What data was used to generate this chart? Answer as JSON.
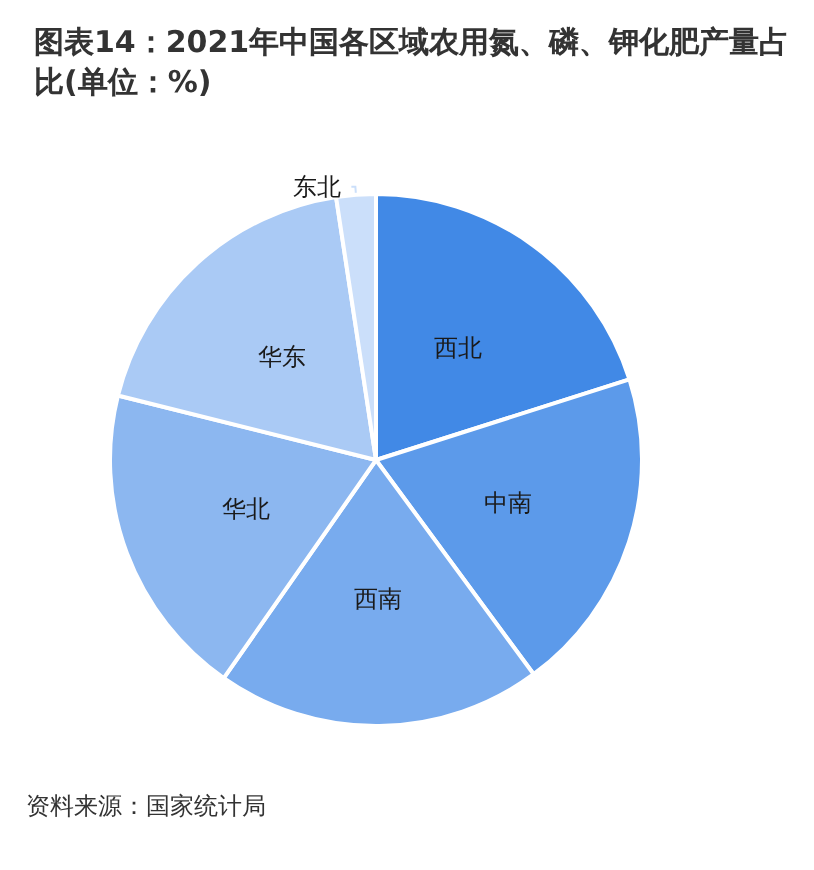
{
  "chart_data": {
    "type": "pie",
    "title": "图表14：2021年中国各区域农用氮、磷、钾化肥产量占比(单位：%)",
    "categories": [
      "西北",
      "中南",
      "西南",
      "华北",
      "华东",
      "东北"
    ],
    "values": [
      20.1,
      19.8,
      19.8,
      19.2,
      18.7,
      2.4
    ],
    "colors": [
      "#4189e6",
      "#5c9aea",
      "#78abee",
      "#8cb7f0",
      "#aacaf5",
      "#cbdffa"
    ],
    "legend": false,
    "annotations": [
      "资料来源：国家统计局"
    ]
  }
}
